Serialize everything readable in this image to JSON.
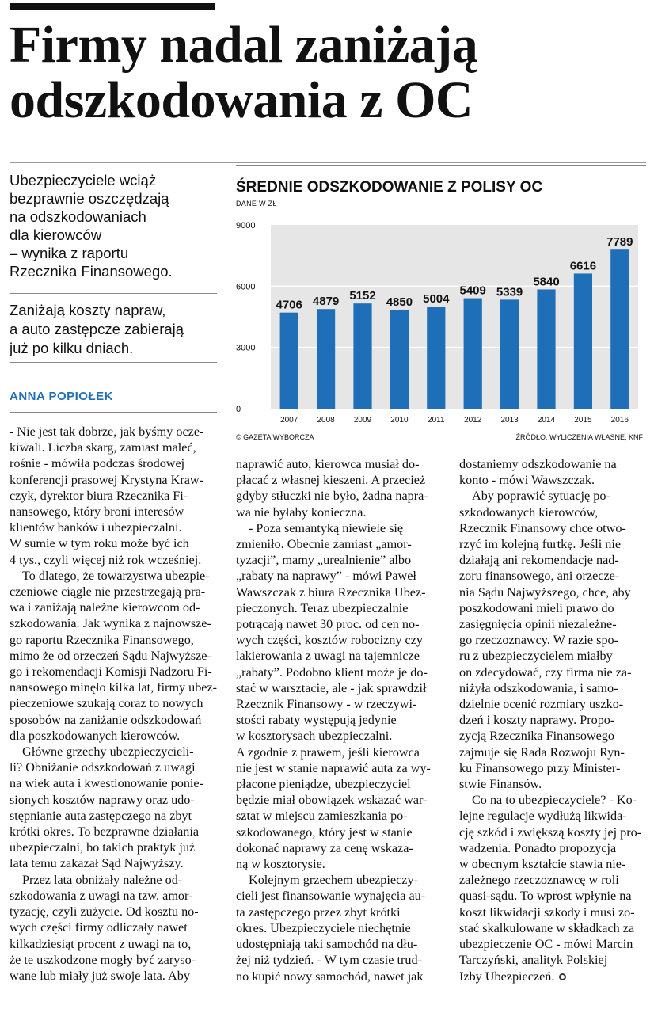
{
  "headline": [
    "Firmy nadal zaniżają",
    "odszkodowania z OC"
  ],
  "lead": [
    "Ubezpieczyciele wciąż",
    "bezprawnie oszczędzają",
    "na odszkodowaniach",
    "dla kierowców",
    "– wynika z raportu",
    "Rzecznika Finansowego."
  ],
  "lead2": [
    "Zaniżają koszty napraw,",
    "a auto zastępcze zabierają",
    "już po kilku dniach."
  ],
  "author": "ANNA POPIOŁEK",
  "chart": {
    "title": "ŚREDNIE ODSZKODOWANIE Z POLISY OC",
    "subtitle": "DANE W ZŁ",
    "source_left": "© GAZETA WYBORCZA",
    "source_right": "ŹRÓDŁO: WYLICZENIA WŁASNE, KNF",
    "bar_color": "#1f6fb8",
    "plot_bg": "#e6e6e6"
  },
  "chart_data": {
    "type": "bar",
    "title": "ŚREDNIE ODSZKODOWANIE Z POLISY OC",
    "subtitle": "DANE W ZŁ",
    "categories": [
      "2007",
      "2008",
      "2009",
      "2010",
      "2011",
      "2012",
      "2013",
      "2014",
      "2015",
      "2016"
    ],
    "values": [
      4706,
      4879,
      5152,
      4850,
      5004,
      5409,
      5339,
      5840,
      6616,
      7789
    ],
    "yticks": [
      0,
      3000,
      6000,
      9000
    ],
    "ylim": [
      0,
      9000
    ],
    "grid": true
  },
  "col1": [
    "- Nie jest tak dobrze, jak byśmy ocze-",
    "kiwali. Liczba skarg, zamiast maleć,",
    "rośnie - mówiła podczas środowej",
    "konferencji prasowej Krystyna Kraw-",
    "czyk, dyrektor biura Rzecznika Fi-",
    "nansowego, który broni interesów",
    "klientów banków i ubezpieczalni.",
    "W sumie w tym roku może być ich",
    "4 tys., czyli więcej niż rok wcześniej.",
    "To dlatego, że towarzystwa ubezpie-",
    "czeniowe ciągle nie przestrzegają pra-",
    "wa i zaniżają należne kierowcom od-",
    "szkodowania. Jak wynika z najnowsze-",
    "go raportu Rzecznika Finansowego,",
    "mimo że od orzeczeń Sądu Najwyższe-",
    "go i rekomendacji Komisji Nadzoru Fi-",
    "nansowego minęło kilka lat, firmy ubez-",
    "pieczeniowe szukają coraz to nowych",
    "sposobów na zaniżanie odszkodowań",
    "dla poszkodowanych kierowców.",
    "Główne grzechy ubezpieczycieli-",
    "li? Obniżanie odszkodowań z uwagi",
    "na wiek auta i kwestionowanie ponie-",
    "sionych kosztów naprawy oraz udo-",
    "stępnianie auta zastępczego na zbyt",
    "krótki okres. To bezprawne działania",
    "ubezpieczalni, bo takich praktyk już",
    "lata temu zakazał Sąd Najwyższy.",
    "Przez lata obniżały należne od-",
    "szkodowania z uwagi na tzw. amor-",
    "tyzację, czyli zużycie. Od kosztu no-",
    "wych części firmy odliczały nawet",
    "kilkadziesiąt procent z uwagi na to,",
    "że te uszkodzone mogły być zaryso-",
    "wane lub miały już swoje lata. Aby"
  ],
  "col2": [
    "naprawić auto, kierowca musiał do-",
    "płacać z własnej kieszeni. A przecież",
    "gdyby stłuczki nie było, żadna napra-",
    "wa nie byłaby konieczna.",
    "- Poza semantyką niewiele się",
    "zmieniło. Obecnie zamiast „amor-",
    "tyzacji”, mamy „urealnienie” albo",
    "„rabaty na naprawy” - mówi Paweł",
    "Wawszczak z biura Rzecznika Ubez-",
    "pieczonych. Teraz ubezpieczalnie",
    "potrącają nawet 30 proc. od cen no-",
    "wych części, kosztów robocizny czy",
    "lakierowania z uwagi na tajemnicze",
    "„rabaty”. Podobno klient może je do-",
    "stać w warsztacie, ale - jak sprawdził",
    "Rzecznik Finansowy - w rzeczywi-",
    "stości rabaty występują jedynie",
    "w kosztorysach ubezpieczalni.",
    "A zgodnie z prawem, jeśli kierowca",
    "nie jest w stanie naprawić auta za wy-",
    "płacone pieniądze, ubezpieczyciel",
    "będzie miał obowiązek wskazać war-",
    "sztat w miejscu zamieszkania po-",
    "szkodowanego, który jest w stanie",
    "dokonać naprawy za cenę wskaza-",
    "ną w kosztorysie.",
    "Kolejnym grzechem ubezpieczy-",
    "cieli jest finansowanie wynajęcia au-",
    "ta zastępczego przez zbyt krótki",
    "okres. Ubezpieczyciele niechętnie",
    "udostępniają taki samochód na dłu-",
    "żej niż tydzień. - W tym czasie trud-",
    "no kupić nowy samochód, nawet jak"
  ],
  "col3": [
    "dostaniemy odszkodowanie na",
    "konto - mówi Wawszczak.",
    "Aby poprawić sytuację po-",
    "szkodowanych kierowców,",
    "Rzecznik Finansowy chce otwo-",
    "rzyć im kolejną furtkę. Jeśli nie",
    "działają ani rekomendacje nad-",
    "zoru finansowego, ani orzecze-",
    "nia Sądu Najwyższego, chce, aby",
    "poszkodowani mieli prawo do",
    "zasięgnięcia opinii niezależne-",
    "go rzeczoznawcy. W razie spo-",
    "ru z ubezpieczycielem miałby",
    "on zdecydować, czy firma nie za-",
    "niżyła odszkodowania, i samo-",
    "dzielnie ocenić rozmiary uszko-",
    "dzeń i koszty naprawy. Propo-",
    "zycją Rzecznika Finansowego",
    "zajmuje się Rada Rozwoju Ryn-",
    "ku Finansowego przy Minister-",
    "stwie Finansów.",
    "Co na to ubezpieczyciele? - Ko-",
    "lejne regulacje wydłużą likwida-",
    "cję szkód i zwiększą koszty jej pro-",
    "wadzenia. Ponadto propozycja",
    "w obecnym kształcie stawia nie-",
    "zależnego rzeczoznawcę w roli",
    "quasi-sądu. To wprost wpłynie na",
    "koszt likwidacji szkody i musi zo-",
    "stać skalkulowane w składkach za",
    "ubezpieczenie OC - mówi Marcin",
    "Tarczyński, analityk Polskiej",
    "Izby Ubezpieczeń."
  ]
}
